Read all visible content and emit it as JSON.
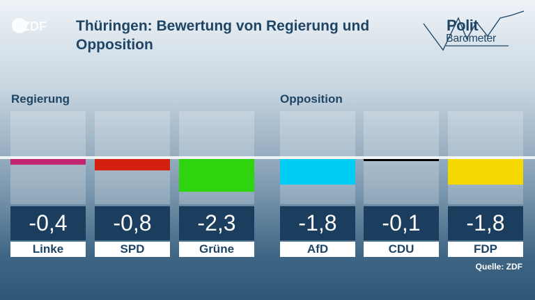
{
  "broadcaster": {
    "logo_text": "ZDF"
  },
  "header": {
    "title": "Thüringen: Bewertung von Regierung und Opposition"
  },
  "politbarometer": {
    "line1": "Polit",
    "line2": "Barometer"
  },
  "groups": {
    "government": "Regierung",
    "opposition": "Opposition"
  },
  "chart_data": {
    "type": "bar",
    "title": "Thüringen: Bewertung von Regierung und Opposition",
    "categories": [
      "Linke",
      "SPD",
      "Grüne",
      "AfD",
      "CDU",
      "FDP"
    ],
    "values": [
      -0.4,
      -0.8,
      -2.3,
      -1.8,
      -0.1,
      -1.8
    ],
    "value_labels": [
      "-0,4",
      "-0,8",
      "-2,3",
      "-1,8",
      "-0,1",
      "-1,8"
    ],
    "groups": [
      {
        "name": "Regierung",
        "categories": [
          "Linke",
          "SPD",
          "Grüne"
        ]
      },
      {
        "name": "Opposition",
        "categories": [
          "AfD",
          "CDU",
          "FDP"
        ]
      }
    ],
    "colors": [
      "#c2246e",
      "#d4200f",
      "#2ed50f",
      "#00cdf4",
      "#000000",
      "#f5d800"
    ],
    "ylim": [
      -5,
      5
    ],
    "xlabel": "",
    "ylabel": "",
    "grid": false
  },
  "footer": {
    "source": "Quelle: ZDF"
  }
}
